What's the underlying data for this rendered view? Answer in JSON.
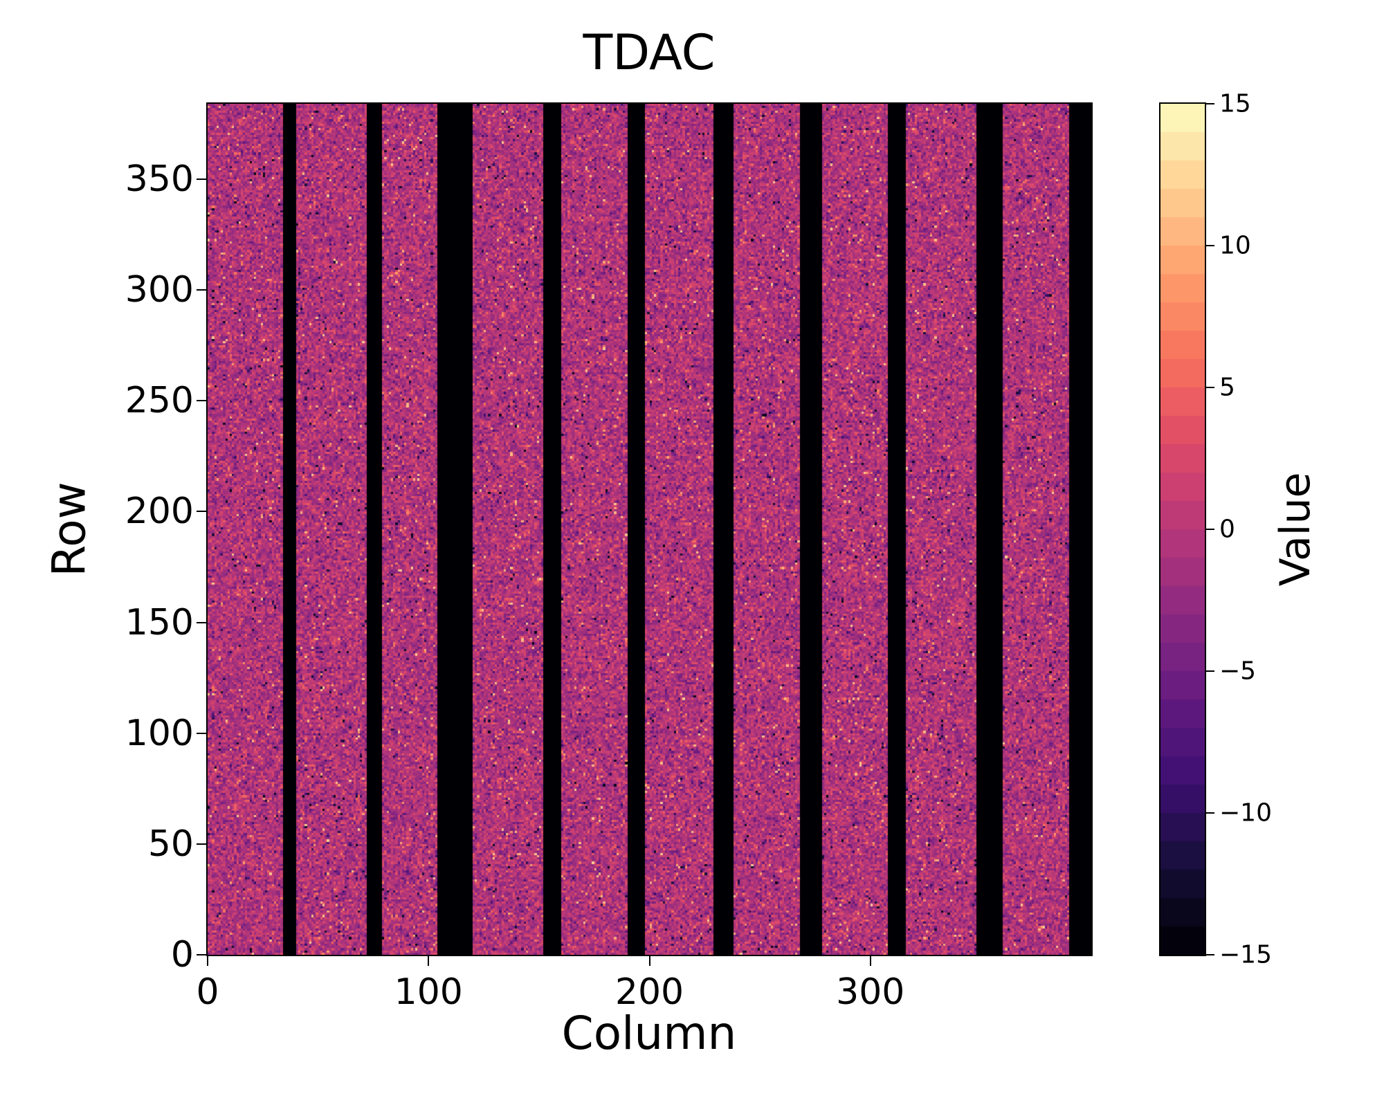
{
  "chart_data": {
    "type": "heatmap",
    "title": "TDAC",
    "xlabel": "Column",
    "ylabel": "Row",
    "colorbar_label": "Value",
    "x_range": [
      0,
      400
    ],
    "y_range": [
      0,
      384
    ],
    "grid_cols": 400,
    "grid_rows": 384,
    "x_tick_values": [
      0,
      100,
      200,
      300
    ],
    "x_tick_labels": [
      "0",
      "100",
      "200",
      "300"
    ],
    "y_tick_values": [
      0,
      50,
      100,
      150,
      200,
      250,
      300,
      350
    ],
    "y_tick_labels": [
      "0",
      "50",
      "100",
      "150",
      "200",
      "250",
      "300",
      "350"
    ],
    "value_range": [
      -15,
      15
    ],
    "colorbar_tick_values": [
      15,
      10,
      5,
      0,
      -5,
      -10,
      -15
    ],
    "colorbar_tick_labels": [
      "15",
      "10",
      "5",
      "0",
      "−5",
      "−10",
      "−15"
    ],
    "colorbar_levels": 30,
    "colormap": "magma",
    "colormap_stops": [
      "#000004",
      "#140e36",
      "#3b0f70",
      "#641a80",
      "#8c2981",
      "#b73779",
      "#de4968",
      "#f7705c",
      "#fe9f6d",
      "#fecf92",
      "#fcfdbf"
    ],
    "dead_column_ranges": [
      [
        34,
        40
      ],
      [
        72,
        79
      ],
      [
        104,
        120
      ],
      [
        152,
        160
      ],
      [
        190,
        198
      ],
      [
        229,
        238
      ],
      [
        268,
        278
      ],
      [
        308,
        316
      ],
      [
        348,
        360
      ],
      [
        390,
        400
      ]
    ],
    "dead_value": -15,
    "noise": {
      "mean": -0.5,
      "sd": 2.3,
      "outlier_fraction": 0.04,
      "bright_outlier_range": [
        4,
        12
      ],
      "dark_outlier_range": [
        -14,
        -5
      ],
      "seed": 42
    },
    "legend_position": "right-colorbar",
    "grid": false
  }
}
